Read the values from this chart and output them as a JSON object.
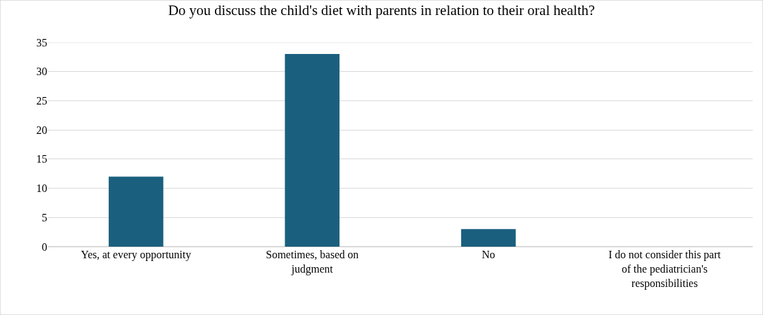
{
  "chart_data": {
    "type": "bar",
    "title": "Do you discuss the child's diet with parents in relation to their oral health?",
    "categories": [
      "Yes, at every opportunity",
      "Sometimes, based on judgment",
      "No",
      "I do not consider this part of the pediatrician's responsibilities"
    ],
    "values": [
      12,
      33,
      3,
      0
    ],
    "color": "#1a5f7e",
    "ylim": [
      0,
      35
    ],
    "yticks": [
      0,
      5,
      10,
      15,
      20,
      25,
      30,
      35
    ],
    "grid": "y"
  }
}
